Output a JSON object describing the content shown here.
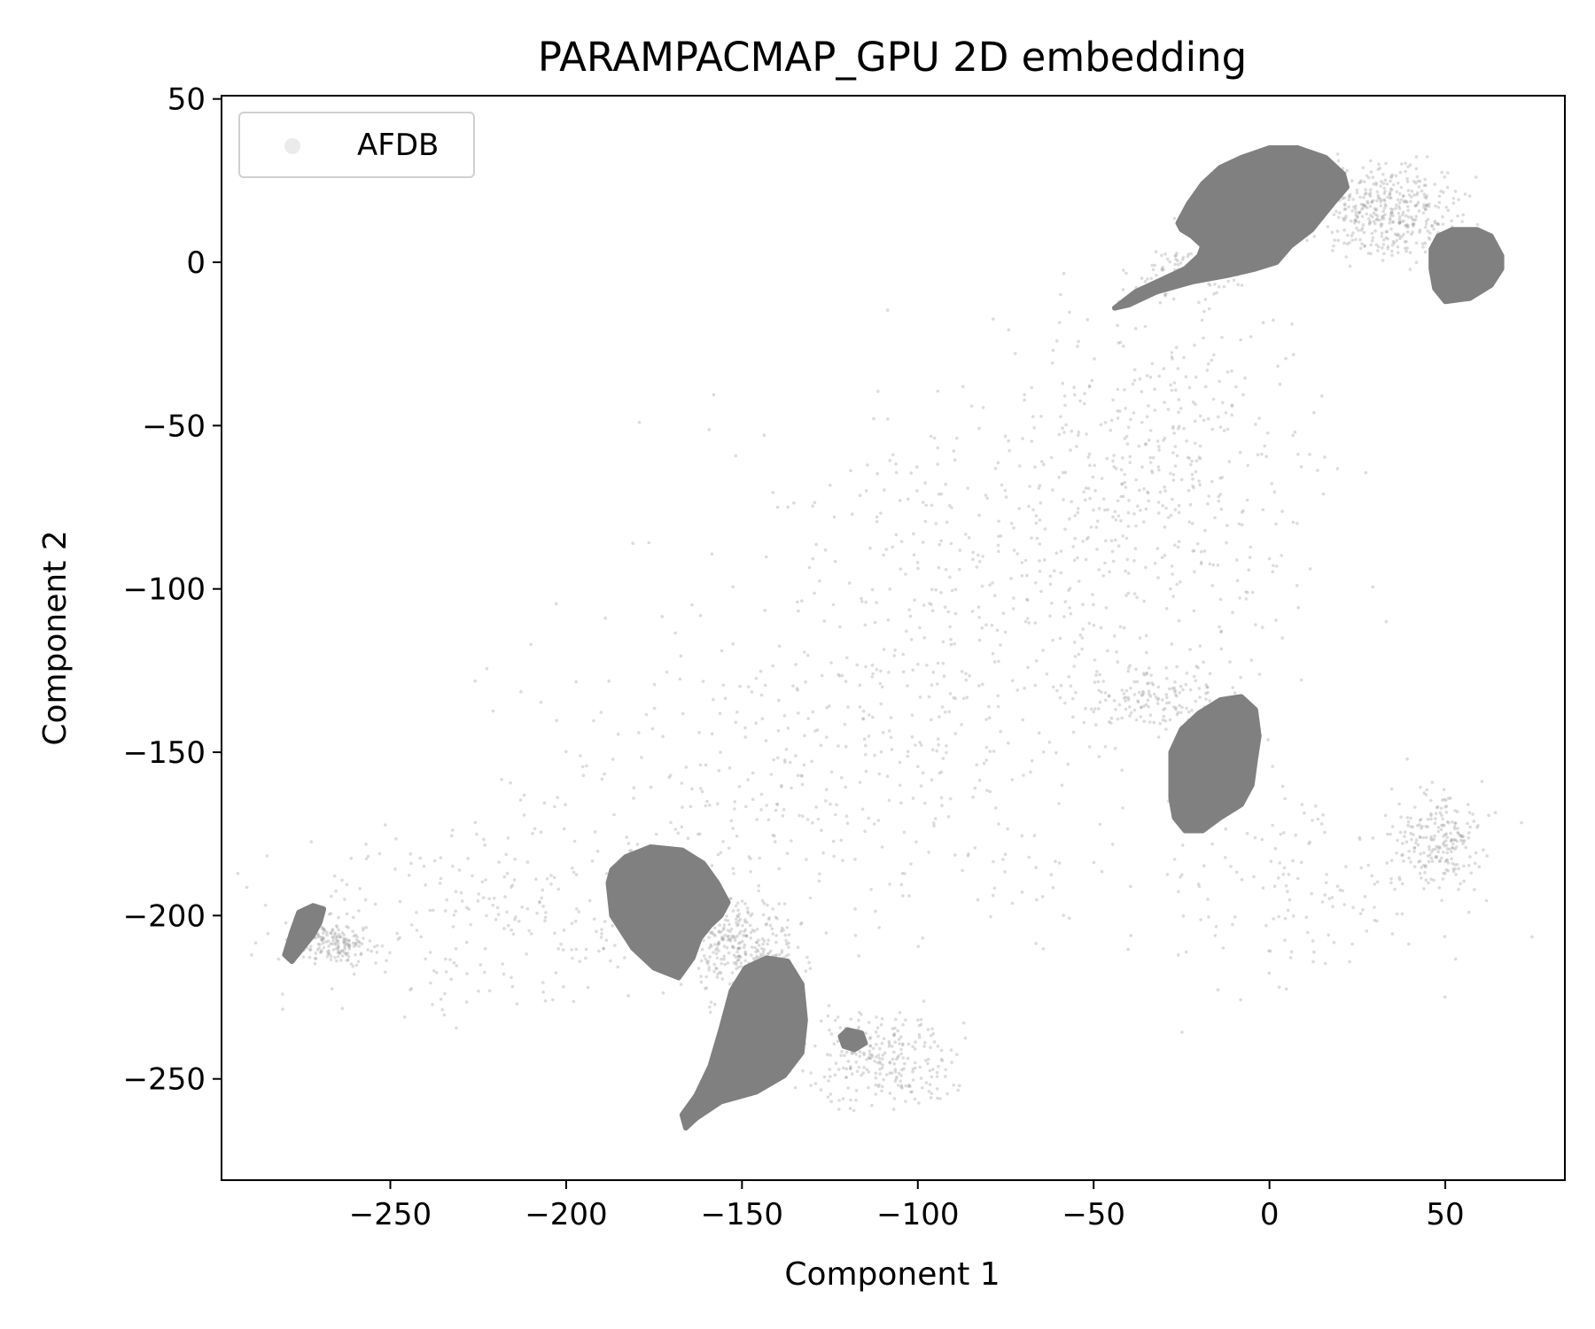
{
  "chart_data": {
    "type": "scatter",
    "title": "PARAMPACMAP_GPU 2D embedding",
    "xlabel": "Component 1",
    "ylabel": "Component 2",
    "xlim": [
      -298,
      84
    ],
    "ylim": [
      -281,
      51
    ],
    "x_ticks": [
      -250,
      -200,
      -150,
      -100,
      -50,
      0,
      50
    ],
    "y_ticks": [
      50,
      0,
      -50,
      -100,
      -150,
      -200,
      -250
    ],
    "x_tick_labels": [
      "−250",
      "−200",
      "−150",
      "−100",
      "−50",
      "0",
      "50"
    ],
    "y_tick_labels": [
      "50",
      "0",
      "−50",
      "−100",
      "−150",
      "−200",
      "−250"
    ],
    "grid": false,
    "legend": {
      "position": "top-left",
      "entries": [
        {
          "label": "AFDB",
          "color": "#b0b0b0"
        }
      ]
    },
    "series": [
      {
        "name": "AFDB",
        "color": "#808080",
        "dense_clusters": [
          {
            "outline": [
              [
                -44,
                -14
              ],
              [
                -38,
                -9
              ],
              [
                -30,
                -5
              ],
              [
                -24,
                -2
              ],
              [
                -20,
                2
              ],
              [
                -19,
                5
              ],
              [
                -22,
                8
              ],
              [
                -25,
                10
              ],
              [
                -26,
                12
              ],
              [
                -23,
                18
              ],
              [
                -19,
                24
              ],
              [
                -14,
                29
              ],
              [
                -8,
                32
              ],
              [
                0,
                35
              ],
              [
                8,
                35
              ],
              [
                16,
                32
              ],
              [
                21,
                27
              ],
              [
                22,
                23
              ],
              [
                18,
                18
              ],
              [
                12,
                10
              ],
              [
                6,
                5
              ],
              [
                2,
                0
              ],
              [
                -4,
                -2
              ],
              [
                -12,
                -4
              ],
              [
                -22,
                -6
              ],
              [
                -32,
                -9
              ],
              [
                -40,
                -13
              ]
            ]
          },
          {
            "outline": [
              [
                46,
                -2
              ],
              [
                46,
                4
              ],
              [
                48,
                8
              ],
              [
                52,
                10
              ],
              [
                59,
                10
              ],
              [
                63,
                8
              ],
              [
                66,
                2
              ],
              [
                66,
                -2
              ],
              [
                63,
                -7
              ],
              [
                57,
                -11
              ],
              [
                50,
                -12
              ],
              [
                47,
                -8
              ]
            ]
          },
          {
            "outline": [
              [
                -28,
                -158
              ],
              [
                -28,
                -150
              ],
              [
                -25,
                -143
              ],
              [
                -20,
                -138
              ],
              [
                -14,
                -134
              ],
              [
                -8,
                -133
              ],
              [
                -4,
                -137
              ],
              [
                -3,
                -145
              ],
              [
                -4,
                -152
              ],
              [
                -5,
                -160
              ],
              [
                -8,
                -166
              ],
              [
                -14,
                -170
              ],
              [
                -19,
                -174
              ],
              [
                -24,
                -174
              ],
              [
                -27,
                -170
              ],
              [
                -28,
                -164
              ]
            ]
          },
          {
            "outline": [
              [
                -188,
                -190
              ],
              [
                -187,
                -200
              ],
              [
                -181,
                -210
              ],
              [
                -175,
                -216
              ],
              [
                -168,
                -219
              ],
              [
                -164,
                -213
              ],
              [
                -162,
                -207
              ],
              [
                -159,
                -203
              ],
              [
                -156,
                -200
              ],
              [
                -154,
                -196
              ],
              [
                -157,
                -190
              ],
              [
                -161,
                -184
              ],
              [
                -167,
                -180
              ],
              [
                -176,
                -179
              ],
              [
                -183,
                -182
              ],
              [
                -187,
                -186
              ]
            ]
          },
          {
            "outline": [
              [
                -166,
                -265
              ],
              [
                -163,
                -262
              ],
              [
                -156,
                -257
              ],
              [
                -146,
                -254
              ],
              [
                -138,
                -249
              ],
              [
                -133,
                -242
              ],
              [
                -132,
                -232
              ],
              [
                -133,
                -221
              ],
              [
                -137,
                -214
              ],
              [
                -143,
                -213
              ],
              [
                -149,
                -216
              ],
              [
                -153,
                -223
              ],
              [
                -156,
                -235
              ],
              [
                -159,
                -246
              ],
              [
                -163,
                -255
              ],
              [
                -167,
                -261
              ]
            ]
          },
          {
            "outline": [
              [
                -280,
                -212
              ],
              [
                -278,
                -205
              ],
              [
                -276,
                -199
              ],
              [
                -272,
                -197
              ],
              [
                -269,
                -198
              ],
              [
                -270,
                -202
              ],
              [
                -272,
                -206
              ],
              [
                -275,
                -210
              ],
              [
                -278,
                -214
              ]
            ]
          },
          {
            "outline": [
              [
                -122,
                -237
              ],
              [
                -121,
                -240
              ],
              [
                -118,
                -241
              ],
              [
                -115,
                -239
              ],
              [
                -116,
                -236
              ],
              [
                -120,
                -235
              ]
            ]
          }
        ],
        "sparse_regions": [
          {
            "center": [
              34,
              15
            ],
            "spread": [
              10,
              7
            ],
            "points": 420
          },
          {
            "center": [
              -24,
              -3
            ],
            "spread": [
              7,
              4
            ],
            "points": 90
          },
          {
            "center": [
              -30,
              -60
            ],
            "spread": [
              22,
              25
            ],
            "points": 380
          },
          {
            "center": [
              -80,
              -100
            ],
            "spread": [
              40,
              30
            ],
            "points": 420
          },
          {
            "center": [
              -130,
              -160
            ],
            "spread": [
              45,
              25
            ],
            "points": 380
          },
          {
            "center": [
              -220,
              -200
            ],
            "spread": [
              35,
              15
            ],
            "points": 260
          },
          {
            "center": [
              -150,
              -209
            ],
            "spread": [
              8,
              8
            ],
            "points": 320
          },
          {
            "center": [
              -110,
              -244
            ],
            "spread": [
              10,
              7
            ],
            "points": 260
          },
          {
            "center": [
              -266,
              -208
            ],
            "spread": [
              5,
              3
            ],
            "points": 160
          },
          {
            "center": [
              -30,
              -133
            ],
            "spread": [
              12,
              5
            ],
            "points": 140
          },
          {
            "center": [
              48,
              -177
            ],
            "spread": [
              6,
              7
            ],
            "points": 200
          },
          {
            "center": [
              15,
              -190
            ],
            "spread": [
              25,
              15
            ],
            "points": 160
          }
        ]
      }
    ]
  }
}
